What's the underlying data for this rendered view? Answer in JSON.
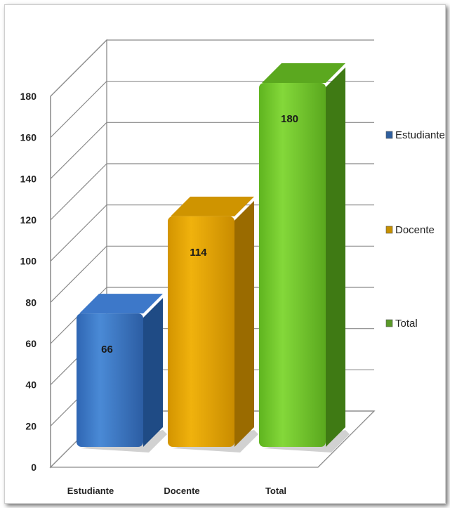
{
  "chart_data": {
    "type": "bar",
    "title": "",
    "xlabel": "",
    "ylabel": "",
    "categories": [
      "Estudiante",
      "Docente",
      "Total"
    ],
    "values": [
      66,
      114,
      180
    ],
    "ylim": [
      0,
      180
    ],
    "y_ticks": [
      "0",
      "20",
      "40",
      "60",
      "80",
      "100",
      "120",
      "140",
      "160",
      "180"
    ],
    "data_labels": [
      "66",
      "114",
      "180"
    ],
    "colors": [
      "#3a78c8",
      "#e0a000",
      "#6cc02a"
    ],
    "legend": {
      "position": "right",
      "items": [
        {
          "label": "Estudiante",
          "color": "#2f5f9e"
        },
        {
          "label": "Docente",
          "color": "#c79100"
        },
        {
          "label": "Total",
          "color": "#5a9a28"
        }
      ]
    },
    "grid": true,
    "style": "3d-column"
  }
}
